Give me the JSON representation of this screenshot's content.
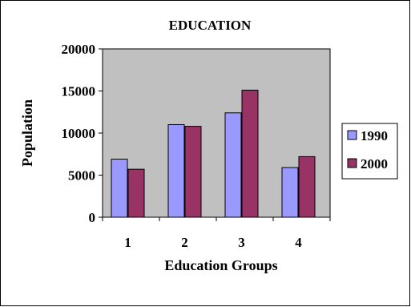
{
  "chart_data": {
    "type": "bar",
    "title": "EDUCATION",
    "xlabel": "Education Groups",
    "ylabel": "Population",
    "categories": [
      "1",
      "2",
      "3",
      "4"
    ],
    "ylim": [
      0,
      20000
    ],
    "yticks": [
      0,
      5000,
      10000,
      15000,
      20000
    ],
    "grid": false,
    "legend": "right",
    "series": [
      {
        "name": "1990",
        "color": "#9999ff",
        "values": [
          6900,
          11000,
          12400,
          5900
        ]
      },
      {
        "name": "2000",
        "color": "#993366",
        "values": [
          5700,
          10800,
          15100,
          7200
        ]
      }
    ],
    "plot_background": "#c0c0c0"
  }
}
